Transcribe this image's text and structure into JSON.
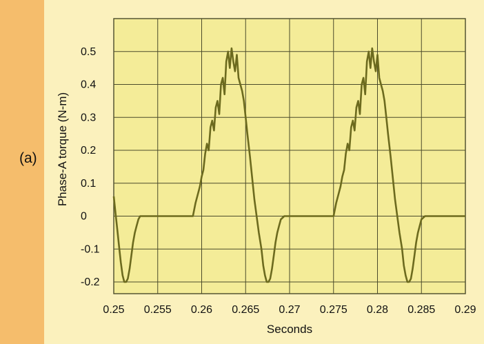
{
  "panel_label": "(a)",
  "colors": {
    "background": "#fbf1bd",
    "plot_background": "#f4ec98",
    "side_strip": "#f5bd6c",
    "grid": "#4a4a2a",
    "trace": "#6c6a1e"
  },
  "chart_data": {
    "type": "line",
    "title": "",
    "xlabel": "Seconds",
    "ylabel": "Phase-A torque (N-m)",
    "xlim": [
      0.25,
      0.29
    ],
    "ylim": [
      -0.22,
      0.6
    ],
    "grid": true,
    "x_tick_labels": [
      "0.25",
      "0.255",
      "0.26",
      "0.265",
      "0.27",
      "0.275",
      "0.28",
      "0.285",
      "0.29"
    ],
    "x_ticks": [
      0.25,
      0.255,
      0.26,
      0.265,
      0.27,
      0.275,
      0.28,
      0.285,
      0.29
    ],
    "y_tick_labels": [
      "0.5",
      "0.4",
      "0.3",
      "0.2",
      "0.1",
      "0",
      "-0.1",
      "-0.2"
    ],
    "y_ticks": [
      0.5,
      0.4,
      0.3,
      0.2,
      0.1,
      0,
      -0.1,
      -0.2
    ],
    "series": [
      {
        "x": [
          0.25,
          0.2502,
          0.2504,
          0.2506,
          0.2508,
          0.251,
          0.2512,
          0.2514,
          0.2516,
          0.2518,
          0.252,
          0.2522,
          0.2524,
          0.2526,
          0.2528,
          0.253,
          0.2534,
          0.254,
          0.255,
          0.256,
          0.257,
          0.258,
          0.2585,
          0.259,
          0.2593,
          0.2596,
          0.2598,
          0.26,
          0.2602,
          0.2604,
          0.2606,
          0.2608,
          0.261,
          0.2612,
          0.2614,
          0.2616,
          0.2618,
          0.262,
          0.2622,
          0.2624,
          0.2626,
          0.2628,
          0.263,
          0.2632,
          0.2634,
          0.2636,
          0.2638,
          0.264,
          0.2642,
          0.2644,
          0.2646,
          0.2648,
          0.265,
          0.2652,
          0.2655,
          0.266,
          0.2665,
          0.2668,
          0.267,
          0.2672,
          0.2674,
          0.2676,
          0.2678,
          0.268,
          0.2682,
          0.2684,
          0.2686,
          0.2688,
          0.269,
          0.2694,
          0.27,
          0.271,
          0.272,
          0.273,
          0.274,
          0.2745,
          0.275,
          0.2753,
          0.2756,
          0.2758,
          0.276,
          0.2762,
          0.2764,
          0.2766,
          0.2768,
          0.277,
          0.2772,
          0.2774,
          0.2776,
          0.2778,
          0.278,
          0.2782,
          0.2784,
          0.2786,
          0.2788,
          0.279,
          0.2792,
          0.2794,
          0.2796,
          0.2798,
          0.28,
          0.2802,
          0.2804,
          0.2806,
          0.2808,
          0.281,
          0.2812,
          0.2815,
          0.282,
          0.2825,
          0.2828,
          0.283,
          0.2832,
          0.2834,
          0.2836,
          0.2838,
          0.284,
          0.2842,
          0.2844,
          0.2846,
          0.2848,
          0.285,
          0.2854,
          0.286,
          0.287,
          0.288,
          0.289,
          0.29
        ],
        "y": [
          0.06,
          0.01,
          -0.04,
          -0.09,
          -0.14,
          -0.18,
          -0.2,
          -0.2,
          -0.19,
          -0.16,
          -0.12,
          -0.08,
          -0.05,
          -0.03,
          -0.01,
          0.0,
          0.0,
          0.0,
          0.0,
          0.0,
          0.0,
          0.0,
          0.0,
          0.0,
          0.04,
          0.07,
          0.09,
          0.12,
          0.14,
          0.19,
          0.22,
          0.2,
          0.27,
          0.29,
          0.26,
          0.33,
          0.35,
          0.31,
          0.4,
          0.42,
          0.37,
          0.47,
          0.5,
          0.45,
          0.51,
          0.47,
          0.44,
          0.49,
          0.42,
          0.4,
          0.38,
          0.35,
          0.3,
          0.25,
          0.18,
          0.05,
          -0.05,
          -0.1,
          -0.15,
          -0.18,
          -0.2,
          -0.2,
          -0.19,
          -0.16,
          -0.12,
          -0.08,
          -0.05,
          -0.03,
          -0.01,
          0.0,
          0.0,
          0.0,
          0.0,
          0.0,
          0.0,
          0.0,
          0.0,
          0.04,
          0.07,
          0.09,
          0.12,
          0.14,
          0.19,
          0.22,
          0.2,
          0.27,
          0.29,
          0.26,
          0.33,
          0.35,
          0.31,
          0.4,
          0.42,
          0.37,
          0.47,
          0.5,
          0.45,
          0.51,
          0.47,
          0.44,
          0.49,
          0.42,
          0.4,
          0.38,
          0.35,
          0.3,
          0.25,
          0.18,
          0.05,
          -0.05,
          -0.1,
          -0.15,
          -0.18,
          -0.2,
          -0.2,
          -0.19,
          -0.16,
          -0.12,
          -0.08,
          -0.05,
          -0.03,
          -0.01,
          0.0,
          0.0,
          0.0,
          0.0,
          0.0,
          0.0
        ]
      }
    ]
  }
}
